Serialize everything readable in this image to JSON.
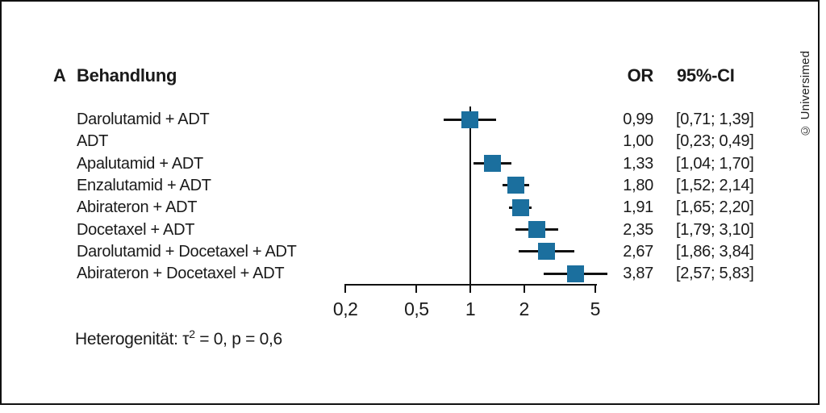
{
  "header": {
    "panel_label": "A",
    "treatment_col": "Behandlung",
    "or_col": "OR",
    "ci_col": "95%-CI"
  },
  "footer": {
    "het_prefix": "Heterogenität: τ",
    "het_sup": "2",
    "het_rest": " = 0, p = 0,6"
  },
  "credit": "© Universimed",
  "colors": {
    "marker": "#1b6f9e",
    "line": "#111111",
    "background": "#ffffff"
  },
  "chart_data": {
    "type": "scatter",
    "subtype": "forest-plot",
    "title": "A Behandlung",
    "x_scale": "log",
    "x_ticks": [
      0.2,
      0.5,
      1,
      2,
      5
    ],
    "x_tick_labels": [
      "0,2",
      "0,5",
      "1",
      "2",
      "5"
    ],
    "x_range": [
      0.2,
      5
    ],
    "reference_line": 1,
    "columns": {
      "or_header": "OR",
      "ci_header": "95%-CI"
    },
    "rows": [
      {
        "label": "Darolutamid + ADT",
        "or": 0.99,
        "ci_low": 0.71,
        "ci_high": 1.39,
        "or_display": "0,99",
        "ci_display": "[0,71; 1,39]",
        "has_marker": true
      },
      {
        "label": "ADT",
        "or": 1.0,
        "ci_low": 0.23,
        "ci_high": 0.49,
        "or_display": "1,00",
        "ci_display": "[0,23; 0,49]",
        "has_marker": false
      },
      {
        "label": "Apalutamid + ADT",
        "or": 1.33,
        "ci_low": 1.04,
        "ci_high": 1.7,
        "or_display": "1,33",
        "ci_display": "[1,04; 1,70]",
        "has_marker": true
      },
      {
        "label": "Enzalutamid + ADT",
        "or": 1.8,
        "ci_low": 1.52,
        "ci_high": 2.14,
        "or_display": "1,80",
        "ci_display": "[1,52; 2,14]",
        "has_marker": true
      },
      {
        "label": "Abirateron + ADT",
        "or": 1.91,
        "ci_low": 1.65,
        "ci_high": 2.2,
        "or_display": "1,91",
        "ci_display": "[1,65; 2,20]",
        "has_marker": true
      },
      {
        "label": "Docetaxel + ADT",
        "or": 2.35,
        "ci_low": 1.79,
        "ci_high": 3.1,
        "or_display": "2,35",
        "ci_display": "[1,79; 3,10]",
        "has_marker": true
      },
      {
        "label": "Darolutamid + Docetaxel + ADT",
        "or": 2.67,
        "ci_low": 1.86,
        "ci_high": 3.84,
        "or_display": "2,67",
        "ci_display": "[1,86; 3,84]",
        "has_marker": true
      },
      {
        "label": "Abirateron + Docetaxel + ADT",
        "or": 3.87,
        "ci_low": 2.57,
        "ci_high": 5.83,
        "or_display": "3,87",
        "ci_display": "[2,57; 5,83]",
        "has_marker": true
      }
    ],
    "heterogeneity": "Heterogenität: τ² = 0, p = 0,6"
  }
}
